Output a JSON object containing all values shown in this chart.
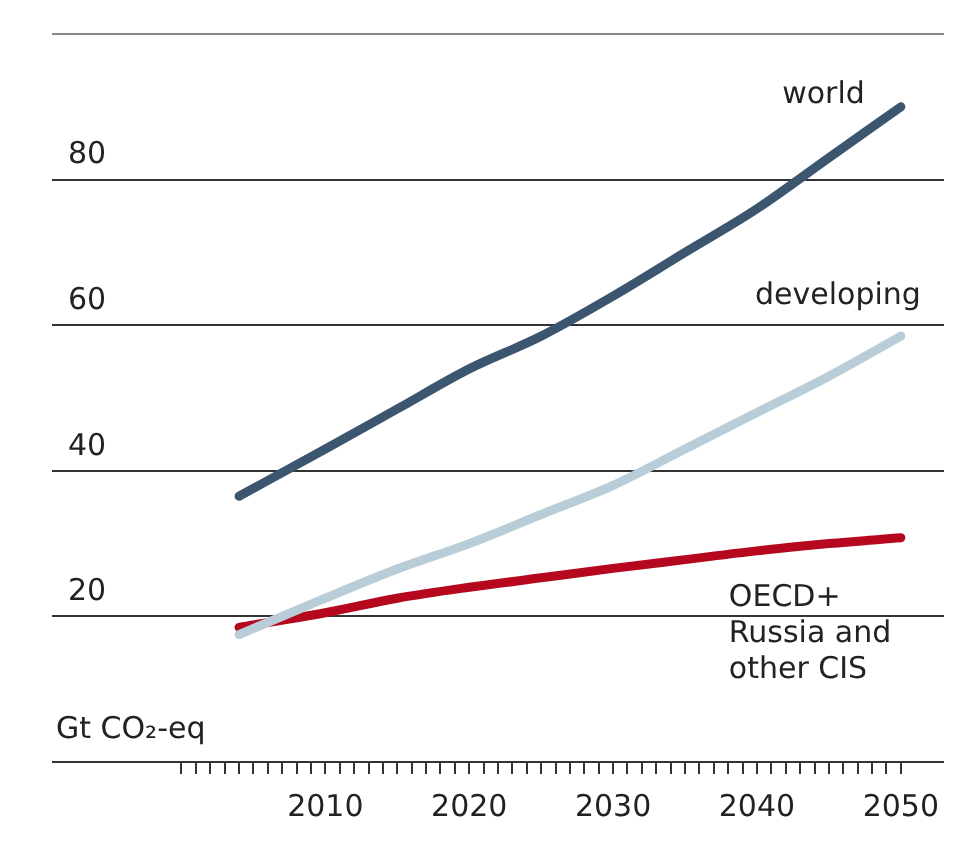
{
  "chart_data": {
    "type": "line",
    "ylabel": "Gt CO₂-eq",
    "grid": "y",
    "legend": false,
    "marker": "none",
    "line_style": "solid",
    "x": [
      2004,
      2010,
      2015,
      2020,
      2025,
      2030,
      2035,
      2040,
      2045,
      2050
    ],
    "xlim": [
      1991,
      2053
    ],
    "xticks": [
      {
        "value": 2000,
        "label": null
      },
      {
        "value": 2001,
        "label": null
      },
      {
        "value": 2002,
        "label": null
      },
      {
        "value": 2003,
        "label": null
      },
      {
        "value": 2004,
        "label": null
      },
      {
        "value": 2005,
        "label": null
      },
      {
        "value": 2006,
        "label": null
      },
      {
        "value": 2007,
        "label": null
      },
      {
        "value": 2008,
        "label": null
      },
      {
        "value": 2009,
        "label": null
      },
      2010,
      {
        "value": 2011,
        "label": null
      },
      {
        "value": 2012,
        "label": null
      },
      {
        "value": 2013,
        "label": null
      },
      {
        "value": 2014,
        "label": null
      },
      {
        "value": 2015,
        "label": null
      },
      {
        "value": 2016,
        "label": null
      },
      {
        "value": 2017,
        "label": null
      },
      {
        "value": 2018,
        "label": null
      },
      {
        "value": 2019,
        "label": null
      },
      2020,
      {
        "value": 2021,
        "label": null
      },
      {
        "value": 2022,
        "label": null
      },
      {
        "value": 2023,
        "label": null
      },
      {
        "value": 2024,
        "label": null
      },
      {
        "value": 2025,
        "label": null
      },
      {
        "value": 2026,
        "label": null
      },
      {
        "value": 2027,
        "label": null
      },
      {
        "value": 2028,
        "label": null
      },
      {
        "value": 2029,
        "label": null
      },
      2030,
      {
        "value": 2031,
        "label": null
      },
      {
        "value": 2032,
        "label": null
      },
      {
        "value": 2033,
        "label": null
      },
      {
        "value": 2034,
        "label": null
      },
      {
        "value": 2035,
        "label": null
      },
      {
        "value": 2036,
        "label": null
      },
      {
        "value": 2037,
        "label": null
      },
      {
        "value": 2038,
        "label": null
      },
      {
        "value": 2039,
        "label": null
      },
      2040,
      {
        "value": 2041,
        "label": null
      },
      {
        "value": 2042,
        "label": null
      },
      {
        "value": 2043,
        "label": null
      },
      {
        "value": 2044,
        "label": null
      },
      {
        "value": 2045,
        "label": null
      },
      {
        "value": 2046,
        "label": null
      },
      {
        "value": 2047,
        "label": null
      },
      {
        "value": 2048,
        "label": null
      },
      {
        "value": 2049,
        "label": null
      },
      2050
    ],
    "ylim": [
      0,
      100
    ],
    "yticks": [
      {
        "value": 0,
        "label": null
      },
      20,
      40,
      60,
      80,
      {
        "value": 100,
        "label": null
      }
    ],
    "series": [
      {
        "name": "world",
        "color": "#3c5670",
        "values": [
          36.5,
          43,
          48.5,
          54,
          58.5,
          64,
          70,
          76,
          83,
          90
        ]
      },
      {
        "name": "developing",
        "color": "#b9cdd8",
        "values": [
          17.5,
          22.5,
          26.5,
          30,
          34,
          38,
          43,
          48,
          53,
          58.5
        ]
      },
      {
        "name": "OECD+ Russia and other CIS",
        "color": "#b5081f",
        "values": [
          18.5,
          20.5,
          22.5,
          24,
          25.3,
          26.6,
          27.8,
          29,
          30,
          30.8
        ]
      }
    ]
  }
}
